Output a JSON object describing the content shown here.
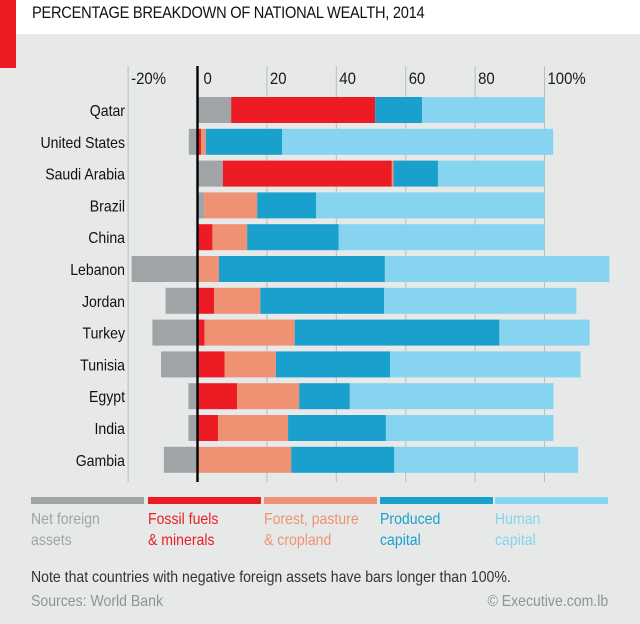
{
  "header": {
    "title": "PERCENTAGE BREAKDOWN OF NATIONAL WEALTH, 2014"
  },
  "colors": {
    "background": "#e6e9e8",
    "accent": "#ed1c24",
    "net_foreign_assets": "#a0a4a7",
    "fossil_fuels": "#ed1c24",
    "forest": "#ee9273",
    "produced": "#1aa0cd",
    "human": "#86d4f0"
  },
  "chart_data": {
    "type": "bar",
    "orientation": "horizontal",
    "stacked": true,
    "title": "PERCENTAGE BREAKDOWN OF NATIONAL WEALTH, 2014",
    "xlabel": "",
    "ylabel": "",
    "xlim": [
      -20,
      120
    ],
    "grid": true,
    "x_ticks": [
      -20,
      0,
      20,
      40,
      60,
      80,
      100
    ],
    "x_tick_labels": [
      "-20%",
      "0",
      "20",
      "40",
      "60",
      "80",
      "100%"
    ],
    "categories": [
      "Qatar",
      "United States",
      "Saudi Arabia",
      "Brazil",
      "China",
      "Lebanon",
      "Jordan",
      "Turkey",
      "Tunisia",
      "Egypt",
      "India",
      "Gambia"
    ],
    "series": [
      {
        "name": "Net foreign assets",
        "key": "net_foreign_assets",
        "values": [
          9.7,
          -2.5,
          7.3,
          1.9,
          0.3,
          -19.0,
          -9.2,
          -13.0,
          -10.5,
          -2.6,
          -2.6,
          -9.7
        ]
      },
      {
        "name": "Fossil fuels & minerals",
        "key": "fossil_fuels",
        "values": [
          41.5,
          1.0,
          48.7,
          0.0,
          4.0,
          0.0,
          4.8,
          2.0,
          7.8,
          11.4,
          5.9,
          0.0
        ]
      },
      {
        "name": "Forest, pasture & cropland",
        "key": "forest",
        "values": [
          0.0,
          1.4,
          0.5,
          15.3,
          10.0,
          6.2,
          13.3,
          26.0,
          14.8,
          17.9,
          20.2,
          27.0
        ]
      },
      {
        "name": "Produced capital",
        "key": "produced",
        "values": [
          13.5,
          22.0,
          12.8,
          17.0,
          26.4,
          47.8,
          35.7,
          59.0,
          32.9,
          14.6,
          28.2,
          29.7
        ]
      },
      {
        "name": "Human capital",
        "key": "human",
        "values": [
          35.3,
          78.1,
          30.7,
          65.8,
          59.3,
          64.7,
          55.4,
          26.0,
          54.9,
          58.7,
          48.3,
          53.0
        ]
      }
    ],
    "legend": [
      {
        "line1": "Net foreign",
        "line2": "assets",
        "key": "net_foreign_assets"
      },
      {
        "line1": "Fossil fuels",
        "line2": "& minerals",
        "key": "fossil_fuels"
      },
      {
        "line1": "Forest, pasture",
        "line2": "& cropland",
        "key": "forest"
      },
      {
        "line1": "Produced",
        "line2": "capital",
        "key": "produced"
      },
      {
        "line1": "Human",
        "line2": "capital",
        "key": "human"
      }
    ],
    "legend_position": "bottom",
    "note": "Note that countries with negative foreign assets have bars longer than 100%."
  },
  "footer": {
    "note": "Note that countries with negative foreign assets have bars longer than 100%.",
    "sources": "Sources: World Bank",
    "credit": "© Executive.com.lb"
  }
}
